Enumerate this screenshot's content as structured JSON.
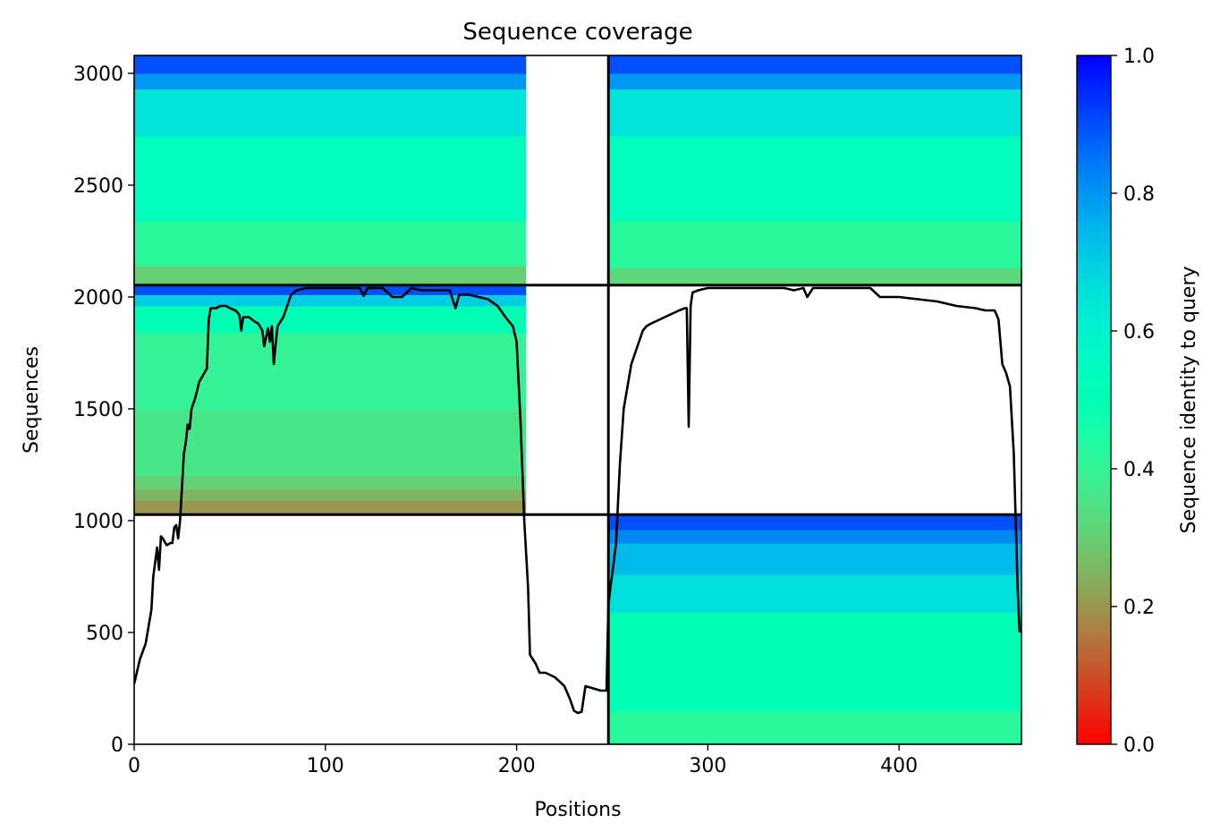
{
  "chart_data": {
    "type": "heatmap",
    "title": "Sequence coverage",
    "xlabel": "Positions",
    "ylabel": "Sequences",
    "xlim": [
      0,
      464
    ],
    "ylim": [
      0,
      3080
    ],
    "x_ticks": [
      0,
      100,
      200,
      300,
      400
    ],
    "y_ticks": [
      0,
      500,
      1000,
      1500,
      2000,
      2500,
      3000
    ],
    "colorbar": {
      "label": "Sequence identity to query",
      "colormap": "rainbow_r",
      "range": [
        0,
        1
      ],
      "ticks": [
        "0.0",
        "0.2",
        "0.4",
        "0.6",
        "0.8",
        "1.0"
      ]
    },
    "grid_lines": {
      "vertical_x": [
        248
      ],
      "horizontal_y": [
        1027,
        2053
      ]
    },
    "blocks": [
      {
        "name": "rows 2053-3080, positions 0-248",
        "x_range": [
          0,
          248
        ],
        "y_range": [
          2053,
          3080
        ],
        "coverage_x_end": 205,
        "identity_bands": [
          {
            "y_from": 2053,
            "y_to": 2140,
            "identity": 0.3
          },
          {
            "y_from": 2140,
            "y_to": 2340,
            "identity": 0.42
          },
          {
            "y_from": 2340,
            "y_to": 2720,
            "identity": 0.53
          },
          {
            "y_from": 2720,
            "y_to": 2930,
            "identity": 0.65
          },
          {
            "y_from": 2930,
            "y_to": 3000,
            "identity": 0.8
          },
          {
            "y_from": 3000,
            "y_to": 3080,
            "identity": 0.9
          }
        ]
      },
      {
        "name": "rows 2053-3080, positions 248-464",
        "x_range": [
          248,
          464
        ],
        "y_range": [
          2053,
          3080
        ],
        "coverage_x_end": 464,
        "identity_bands": [
          {
            "y_from": 2053,
            "y_to": 2130,
            "identity": 0.32
          },
          {
            "y_from": 2130,
            "y_to": 2340,
            "identity": 0.42
          },
          {
            "y_from": 2340,
            "y_to": 2720,
            "identity": 0.53
          },
          {
            "y_from": 2720,
            "y_to": 2930,
            "identity": 0.65
          },
          {
            "y_from": 2930,
            "y_to": 3000,
            "identity": 0.8
          },
          {
            "y_from": 3000,
            "y_to": 3080,
            "identity": 0.9
          }
        ]
      },
      {
        "name": "rows 1027-2053, positions 0-248",
        "x_range": [
          0,
          248
        ],
        "y_range": [
          1027,
          2053
        ],
        "coverage_x_end": 205,
        "identity_bands": [
          {
            "y_from": 1027,
            "y_to": 1090,
            "identity": 0.2
          },
          {
            "y_from": 1090,
            "y_to": 1140,
            "identity": 0.25
          },
          {
            "y_from": 1140,
            "y_to": 1200,
            "identity": 0.3
          },
          {
            "y_from": 1200,
            "y_to": 1500,
            "identity": 0.36
          },
          {
            "y_from": 1500,
            "y_to": 1840,
            "identity": 0.4
          },
          {
            "y_from": 1840,
            "y_to": 1960,
            "identity": 0.5
          },
          {
            "y_from": 1960,
            "y_to": 2010,
            "identity": 0.7
          },
          {
            "y_from": 2010,
            "y_to": 2053,
            "identity": 0.9
          }
        ]
      },
      {
        "name": "rows 0-1027, positions 248-464",
        "x_range": [
          248,
          464
        ],
        "y_range": [
          0,
          1027
        ],
        "coverage_x_end": 464,
        "identity_bands": [
          {
            "y_from": 0,
            "y_to": 150,
            "identity": 0.42
          },
          {
            "y_from": 150,
            "y_to": 590,
            "identity": 0.5
          },
          {
            "y_from": 590,
            "y_to": 760,
            "identity": 0.66
          },
          {
            "y_from": 760,
            "y_to": 900,
            "identity": 0.74
          },
          {
            "y_from": 900,
            "y_to": 960,
            "identity": 0.82
          },
          {
            "y_from": 960,
            "y_to": 1027,
            "identity": 0.9
          }
        ]
      }
    ],
    "coverage_line": {
      "name": "coverage",
      "x": [
        0,
        3,
        6,
        9,
        10,
        12,
        13,
        14,
        15,
        17,
        19,
        20,
        21,
        22,
        23,
        24,
        26,
        27,
        28,
        29,
        30,
        32,
        34,
        36,
        38,
        39,
        40,
        43,
        45,
        48,
        50,
        53,
        55,
        56,
        57,
        60,
        63,
        65,
        67,
        68,
        70,
        71,
        72,
        73,
        74,
        75,
        78,
        80,
        82,
        85,
        90,
        95,
        100,
        105,
        110,
        115,
        118,
        120,
        122,
        125,
        130,
        135,
        140,
        145,
        150,
        155,
        160,
        165,
        168,
        170,
        175,
        180,
        185,
        190,
        195,
        198,
        200,
        202,
        204,
        206,
        207,
        210,
        212,
        215,
        220,
        225,
        228,
        230,
        232,
        234,
        236,
        240,
        244,
        247,
        248,
        249,
        250,
        252,
        254,
        256,
        258,
        260,
        262,
        264,
        266,
        268,
        270,
        275,
        280,
        285,
        288,
        289,
        290,
        291,
        292,
        295,
        300,
        310,
        320,
        330,
        340,
        345,
        350,
        352,
        355,
        360,
        370,
        380,
        385,
        390,
        400,
        410,
        420,
        430,
        440,
        445,
        450,
        452,
        454,
        456,
        458,
        460,
        461,
        462,
        463,
        464
      ],
      "y": [
        270,
        380,
        450,
        600,
        750,
        880,
        780,
        930,
        920,
        890,
        900,
        900,
        970,
        980,
        920,
        1000,
        1300,
        1350,
        1430,
        1410,
        1500,
        1550,
        1620,
        1650,
        1680,
        1900,
        1950,
        1950,
        1960,
        1960,
        1950,
        1940,
        1920,
        1850,
        1910,
        1910,
        1890,
        1880,
        1850,
        1780,
        1860,
        1800,
        1870,
        1700,
        1790,
        1870,
        1910,
        1960,
        2010,
        2030,
        2040,
        2040,
        2040,
        2040,
        2040,
        2040,
        2040,
        2005,
        2040,
        2040,
        2040,
        2000,
        2000,
        2040,
        2030,
        2030,
        2030,
        2030,
        1950,
        2010,
        2010,
        2000,
        1990,
        1960,
        1900,
        1870,
        1800,
        1450,
        1000,
        700,
        400,
        360,
        320,
        320,
        300,
        260,
        200,
        150,
        140,
        145,
        260,
        250,
        240,
        240,
        620,
        700,
        760,
        900,
        1250,
        1500,
        1600,
        1700,
        1750,
        1800,
        1850,
        1870,
        1880,
        1900,
        1920,
        1940,
        1950,
        1950,
        1420,
        1960,
        2020,
        2030,
        2040,
        2040,
        2040,
        2040,
        2040,
        2030,
        2040,
        2000,
        2040,
        2040,
        2040,
        2040,
        2040,
        2000,
        2000,
        1990,
        1980,
        1960,
        1950,
        1940,
        1940,
        1900,
        1700,
        1660,
        1600,
        1300,
        1000,
        700,
        500
      ]
    }
  }
}
